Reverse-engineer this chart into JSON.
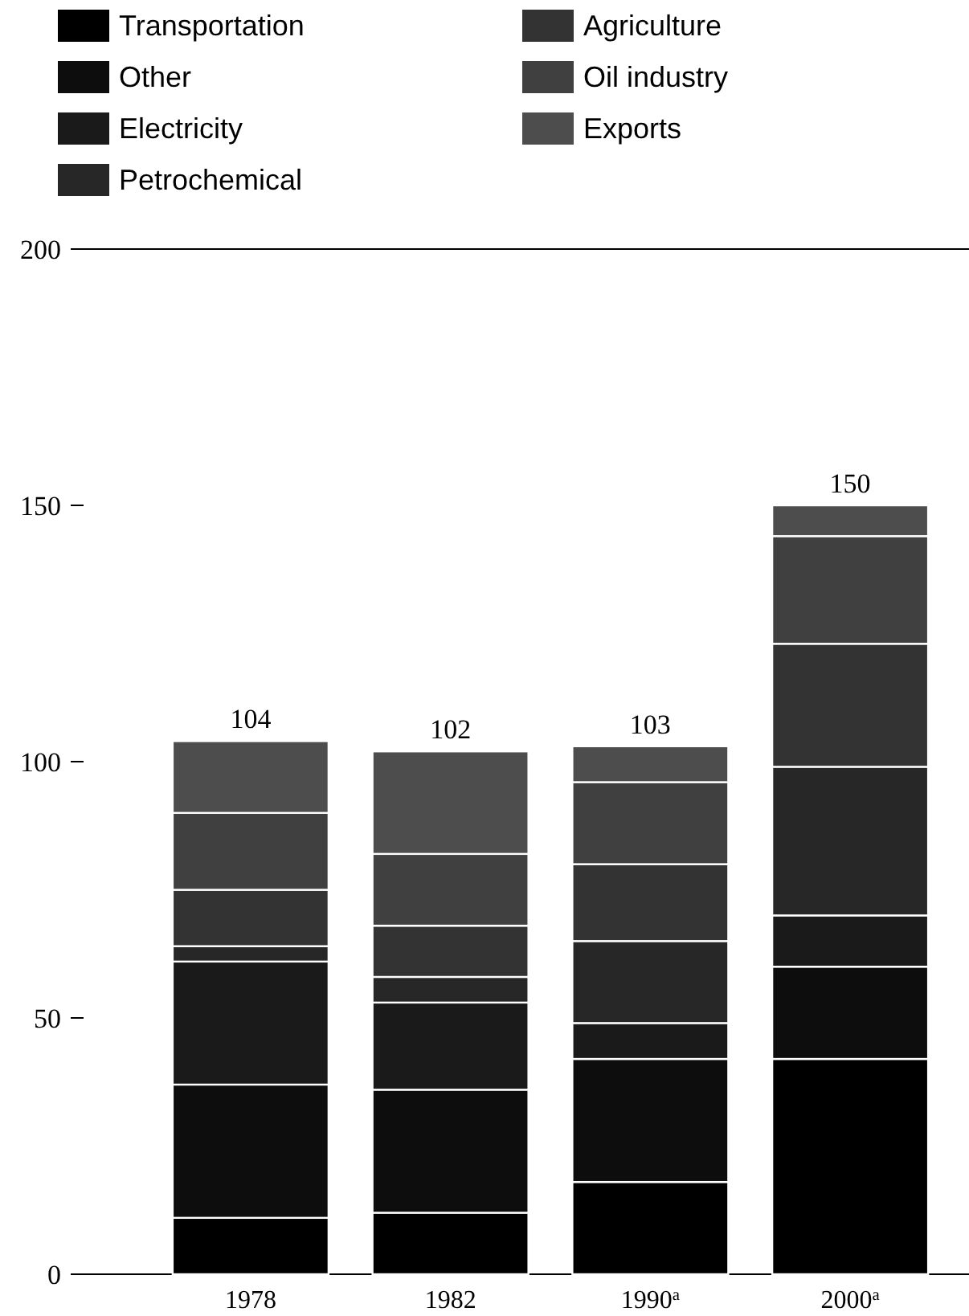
{
  "chart_data": {
    "type": "bar",
    "stacked": true,
    "categories": [
      "1978",
      "1982",
      "1990$^{a}$",
      "2000$^{a}$"
    ],
    "series": [
      {
        "name": "Transportation",
        "color": "#000000",
        "values": [
          11,
          12,
          18,
          42
        ]
      },
      {
        "name": "Other",
        "color": "#0d0d0d",
        "values": [
          26,
          24,
          24,
          18
        ]
      },
      {
        "name": "Electricity",
        "color": "#1a1a1a",
        "values": [
          24,
          17,
          7,
          10
        ]
      },
      {
        "name": "Petrochemical",
        "color": "#272727",
        "values": [
          3,
          5,
          16,
          29
        ]
      },
      {
        "name": "Agriculture",
        "color": "#333333",
        "values": [
          11,
          10,
          15,
          24
        ]
      },
      {
        "name": "Oil industry",
        "color": "#404040",
        "values": [
          15,
          14,
          16,
          21
        ]
      },
      {
        "name": "Exports",
        "color": "#4d4d4d",
        "values": [
          14,
          20,
          7,
          6
        ]
      }
    ],
    "ylim": [
      0,
      200
    ],
    "yticks": [
      0,
      50,
      100,
      150,
      200
    ],
    "totals": [
      "104",
      "102",
      "103",
      "150"
    ],
    "legend": "top",
    "grid": false
  }
}
